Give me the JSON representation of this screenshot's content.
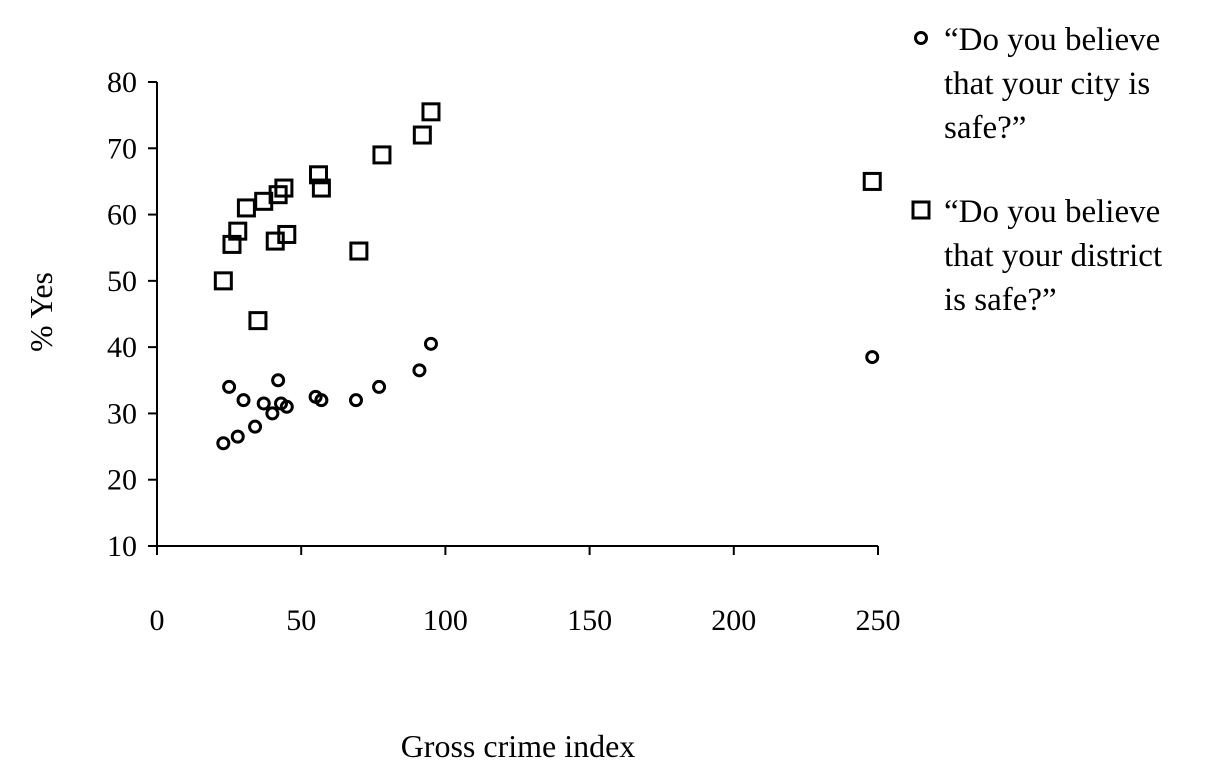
{
  "chart_data": {
    "type": "scatter",
    "title": "",
    "xlabel": "Gross crime index",
    "ylabel": "% Yes",
    "xlim": [
      0,
      250
    ],
    "ylim": [
      10,
      80
    ],
    "xticks": [
      0,
      50,
      100,
      150,
      200,
      250
    ],
    "yticks": [
      10,
      20,
      30,
      40,
      50,
      60,
      70,
      80
    ],
    "grid": false,
    "legend_position": "right",
    "series": [
      {
        "name": "“Do you believe that your city is safe?”",
        "marker": "circle",
        "points": [
          {
            "x": 23,
            "y": 25.5
          },
          {
            "x": 28,
            "y": 26.5
          },
          {
            "x": 25,
            "y": 34
          },
          {
            "x": 30,
            "y": 32
          },
          {
            "x": 34,
            "y": 28
          },
          {
            "x": 37,
            "y": 31.5
          },
          {
            "x": 40,
            "y": 30
          },
          {
            "x": 42,
            "y": 35
          },
          {
            "x": 43,
            "y": 31.5
          },
          {
            "x": 45,
            "y": 31
          },
          {
            "x": 55,
            "y": 32.5
          },
          {
            "x": 57,
            "y": 32
          },
          {
            "x": 69,
            "y": 32
          },
          {
            "x": 77,
            "y": 34
          },
          {
            "x": 91,
            "y": 36.5
          },
          {
            "x": 95,
            "y": 40.5
          },
          {
            "x": 248,
            "y": 38.5
          }
        ]
      },
      {
        "name": "“Do you believe that your district is safe?”",
        "marker": "square",
        "points": [
          {
            "x": 23,
            "y": 50
          },
          {
            "x": 26,
            "y": 55.5
          },
          {
            "x": 28,
            "y": 57.5
          },
          {
            "x": 31,
            "y": 61
          },
          {
            "x": 35,
            "y": 44
          },
          {
            "x": 37,
            "y": 62
          },
          {
            "x": 41,
            "y": 56
          },
          {
            "x": 42,
            "y": 63
          },
          {
            "x": 44,
            "y": 64
          },
          {
            "x": 45,
            "y": 57
          },
          {
            "x": 56,
            "y": 66
          },
          {
            "x": 57,
            "y": 64
          },
          {
            "x": 70,
            "y": 54.5
          },
          {
            "x": 78,
            "y": 69
          },
          {
            "x": 92,
            "y": 72
          },
          {
            "x": 95,
            "y": 75.5
          },
          {
            "x": 248,
            "y": 65
          }
        ]
      }
    ],
    "legend": [
      {
        "marker": "circle",
        "lines": [
          "“Do you believe",
          "that your city is",
          "safe?”"
        ]
      },
      {
        "marker": "square",
        "lines": [
          "“Do you believe",
          "that your district",
          "is safe?”"
        ]
      }
    ]
  }
}
